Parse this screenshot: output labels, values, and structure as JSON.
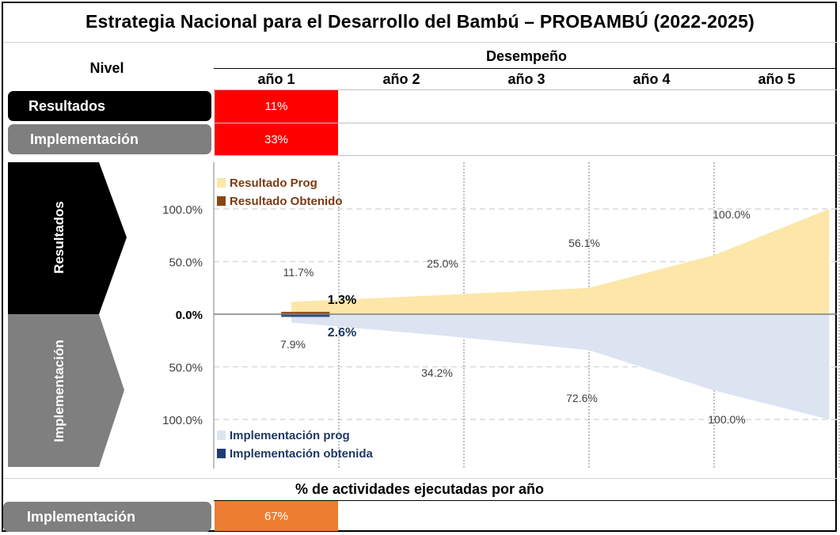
{
  "title": "Estrategia Nacional para el Desarrollo del Bambú – PROBAMBÚ (2022-2025)",
  "header": {
    "nivel_label": "Nivel",
    "desempeno_label": "Desempeño",
    "years": [
      "año 1",
      "año 2",
      "año 3",
      "año 4",
      "año 5"
    ]
  },
  "summary_rows": [
    {
      "label": "Resultados",
      "value": "11%",
      "label_color": "#000000",
      "cell_color": "#ff0000"
    },
    {
      "label": "Implementación",
      "value": "33%",
      "label_color": "#7f7f7f",
      "cell_color": "#ff0000"
    }
  ],
  "chart_data": {
    "type": "area",
    "x": [
      "año 1",
      "año 2",
      "año 3",
      "año 4",
      "año 5"
    ],
    "y_ticks_upper": [
      "100.0%",
      "50.0%",
      "0.0%"
    ],
    "y_ticks_lower": [
      "50.0%",
      "100.0%"
    ],
    "side_labels": {
      "upper": "Resultados",
      "lower": "Implementación"
    },
    "series": [
      {
        "name": "Resultado Prog",
        "direction": "up",
        "color": "#fce7a9",
        "x": [
          0.62,
          1.8,
          3.0,
          4.0,
          4.92
        ],
        "values": [
          11.7,
          18.0,
          25.0,
          56.1,
          100.0
        ],
        "labels": [
          {
            "x": 1,
            "v": 11.7,
            "text": "11.7%"
          },
          {
            "x": 3,
            "v": 25.0,
            "text": "25.0%"
          },
          {
            "x": 4,
            "v": 56.1,
            "text": "56.1%"
          },
          {
            "x": 5,
            "v": 100.0,
            "text": "100.0%"
          }
        ]
      },
      {
        "name": "Resultado Obtenido",
        "direction": "up",
        "color": "#8b4513",
        "x": [
          0.4,
          0.85
        ],
        "values": [
          1.3,
          1.3
        ],
        "labels": [
          {
            "x": 1,
            "v": 1.3,
            "text": "1.3%"
          }
        ]
      },
      {
        "name": "Implementación prog",
        "direction": "down",
        "color": "#dce4f2",
        "x": [
          0.62,
          1.8,
          3.0,
          4.0,
          4.92
        ],
        "values": [
          7.9,
          20.0,
          34.2,
          72.6,
          100.0
        ],
        "labels": [
          {
            "x": 1,
            "v": 7.9,
            "text": "7.9%"
          },
          {
            "x": 3,
            "v": 34.2,
            "text": "34.2%"
          },
          {
            "x": 4,
            "v": 72.6,
            "text": "72.6%"
          },
          {
            "x": 5,
            "v": 100.0,
            "text": "100.0%"
          }
        ]
      },
      {
        "name": "Implementación obtenida",
        "direction": "down",
        "color": "#1f3d73",
        "x": [
          0.4,
          0.85
        ],
        "values": [
          2.6,
          2.6
        ],
        "labels": [
          {
            "x": 1,
            "v": 2.6,
            "text": "2.6%"
          }
        ]
      }
    ],
    "legend_upper": [
      "Resultado Prog",
      "Resultado Obtenido"
    ],
    "legend_lower": [
      "Implementación prog",
      "Implementación obtenida"
    ],
    "legend_colors": {
      "Resultado Prog": "#fce7a9",
      "Resultado Obtenido": "#8b4513",
      "Implementación prog": "#dce4f2",
      "Implementación obtenida": "#1f3d73"
    },
    "legend_text_colors": {
      "upper": "#7b3a12",
      "lower": "#1f3864"
    }
  },
  "footer": {
    "heading": "% de actividades ejecutadas por año",
    "row": {
      "label": "Implementación",
      "value": "67%",
      "label_color": "#7f7f7f",
      "cell_color": "#ed7d31"
    }
  }
}
